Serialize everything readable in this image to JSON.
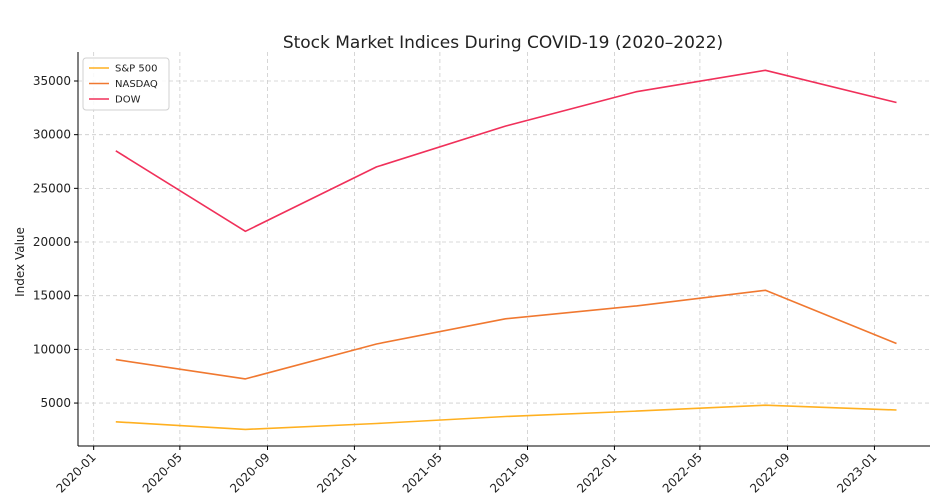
{
  "chart_data": {
    "type": "line",
    "title": "Stock Market Indices During COVID-19 (2020–2022)",
    "xlabel": "",
    "ylabel": "Index Value",
    "x": [
      "2020-02-01",
      "2020-08-01",
      "2021-02-01",
      "2021-08-01",
      "2022-02-01",
      "2022-08-01",
      "2023-02-01"
    ],
    "series": [
      {
        "name": "S&P 500",
        "color": "#FFB020",
        "values": [
          3250,
          2550,
          3100,
          3750,
          4250,
          4800,
          4350
        ]
      },
      {
        "name": "NASDAQ",
        "color": "#F07830",
        "values": [
          9050,
          7250,
          10500,
          12850,
          14050,
          15500,
          10550
        ]
      },
      {
        "name": "DOW",
        "color": "#F0305A",
        "values": [
          28500,
          21000,
          27000,
          30800,
          34000,
          36000,
          33000
        ]
      }
    ],
    "x_ticks": [
      "2020-01",
      "2020-05",
      "2020-09",
      "2021-01",
      "2021-05",
      "2021-09",
      "2022-01",
      "2022-05",
      "2022-09",
      "2023-01"
    ],
    "y_ticks": [
      5000,
      10000,
      15000,
      20000,
      25000,
      30000,
      35000
    ],
    "xlim": [
      "2019-12-10",
      "2023-03-20"
    ],
    "ylim": [
      1000,
      37700
    ],
    "grid": true,
    "legend_position": "top-left"
  }
}
